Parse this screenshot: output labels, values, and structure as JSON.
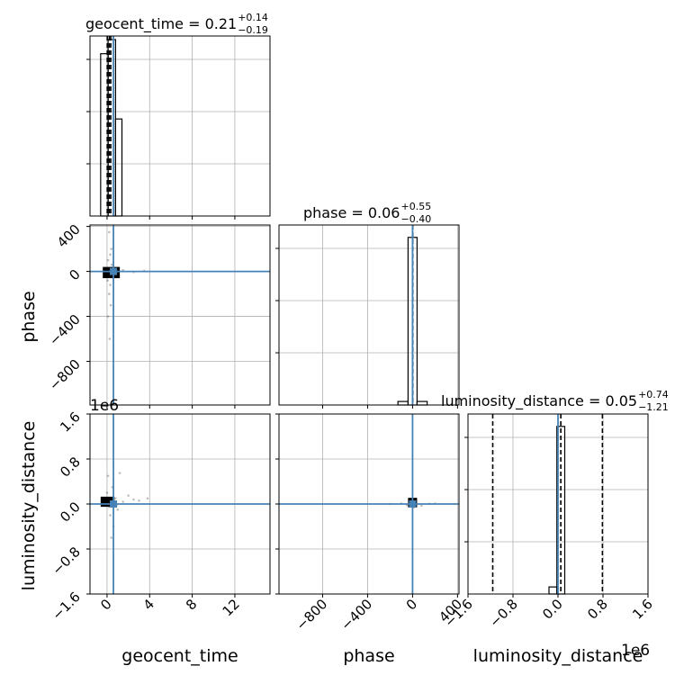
{
  "chart_data": {
    "type": "corner",
    "parameters": [
      "geocent_time",
      "phase",
      "luminosity_distance"
    ],
    "colors": {
      "truth": "#4682b4",
      "hist": "#000000",
      "grid": "#b0b0b0",
      "samples": "#000000"
    },
    "grid": true,
    "truths": {
      "geocent_time": 0.6,
      "phase": 0,
      "luminosity_distance": 0
    },
    "titles": {
      "geocent_time": {
        "prefix": "geocent_time = 0.21",
        "sup": "+0.14",
        "sub": "−0.19"
      },
      "phase": {
        "prefix": "phase = 0.06",
        "sup": "+0.55",
        "sub": "−0.40"
      },
      "luminosity_distance": {
        "prefix": "luminosity_distance = 0.05",
        "sup": "+0.74",
        "sub": "−1.21"
      }
    },
    "axis_labels": {
      "x": [
        "geocent_time",
        "phase",
        "luminosity_distance"
      ],
      "y": [
        "phase",
        "luminosity_distance"
      ]
    },
    "offset_text": {
      "luminosity_distance_y": "1e6",
      "luminosity_distance_x": "1e6"
    },
    "ranges": {
      "geocent_time": [
        -1.6,
        15.3
      ],
      "phase": [
        -1188,
        413
      ],
      "luminosity_distance": [
        -1600000,
        1600000
      ]
    },
    "ticks": {
      "geocent_time": {
        "values": [
          0,
          4,
          8,
          12
        ],
        "labels": [
          "0",
          "4",
          "8",
          "12"
        ]
      },
      "phase": {
        "values": [
          -800,
          -400,
          0,
          400
        ],
        "labels": [
          "−800",
          "−400",
          "0",
          "400"
        ]
      },
      "luminosity_distance": {
        "values": [
          -1600000,
          -800000,
          0,
          800000,
          1600000
        ],
        "labels": [
          "−1.6",
          "−0.8",
          "0.0",
          "0.8",
          "1.6"
        ]
      }
    },
    "histograms": {
      "geocent_time": {
        "bins": [
          [
            -0.6,
            0.1
          ],
          [
            0.1,
            0.8
          ],
          [
            0.8,
            1.4
          ]
        ],
        "heights": [
          0.92,
          1.0,
          0.55
        ],
        "quantile_lines": [
          0.02,
          0.21,
          0.35
        ]
      },
      "phase": {
        "bins": [
          [
            -130,
            -40
          ],
          [
            -40,
            40
          ],
          [
            40,
            130
          ]
        ],
        "heights": [
          0.02,
          0.95,
          0.02
        ],
        "quantile_lines": [
          -0.34,
          0.06,
          0.61
        ]
      },
      "luminosity_distance": {
        "bins": [
          [
            -160000,
            -20000
          ],
          [
            -20000,
            120000
          ]
        ],
        "heights": [
          0.04,
          0.95
        ],
        "quantile_lines": [
          -1160000,
          50000,
          790000
        ]
      }
    },
    "scatter": {
      "phase_vs_geocent_time": {
        "points": [
          [
            0.2,
            350
          ],
          [
            0.4,
            200
          ],
          [
            0.1,
            100
          ],
          [
            0.5,
            -50
          ],
          [
            0.3,
            -120
          ],
          [
            0.2,
            -200
          ],
          [
            0.35,
            -300
          ],
          [
            0.1,
            -400
          ],
          [
            0.25,
            -600
          ],
          [
            0.4,
            30
          ],
          [
            0.15,
            -30
          ],
          [
            0.45,
            60
          ],
          [
            1.5,
            10
          ],
          [
            2.5,
            -5
          ],
          [
            3.5,
            5
          ],
          [
            0.6,
            0
          ],
          [
            1.0,
            0
          ],
          [
            -0.2,
            20
          ],
          [
            0.05,
            -80
          ],
          [
            0.3,
            150
          ]
        ],
        "core": {
          "x": [
            -0.4,
            1.2
          ],
          "y": [
            -60,
            40
          ]
        }
      },
      "luminosity_distance_vs_geocent_time": {
        "points": [
          [
            0.1,
            500000
          ],
          [
            1.2,
            550000
          ],
          [
            0.5,
            300000
          ],
          [
            0.3,
            -200000
          ],
          [
            0.6,
            -400000
          ],
          [
            0.4,
            -600000
          ],
          [
            2.0,
            150000
          ],
          [
            2.5,
            80000
          ],
          [
            3.0,
            60000
          ],
          [
            1.0,
            -100000
          ],
          [
            0.8,
            100000
          ],
          [
            0.2,
            -50000
          ],
          [
            1.5,
            40000
          ],
          [
            3.8,
            100000
          ],
          [
            0.0,
            200000
          ],
          [
            0.9,
            -20000
          ]
        ],
        "core": {
          "x": [
            -0.6,
            0.7
          ],
          "y": [
            -50000,
            130000
          ]
        }
      },
      "luminosity_distance_vs_phase": {
        "points": [
          [
            -100,
            10000
          ],
          [
            -50,
            -20000
          ],
          [
            30,
            40000
          ],
          [
            80,
            -30000
          ],
          [
            150,
            5000
          ],
          [
            -200,
            0
          ],
          [
            200,
            10000
          ],
          [
            -20,
            80000
          ],
          [
            10,
            -60000
          ]
        ],
        "core": {
          "x": [
            -40,
            40
          ],
          "y": [
            -60000,
            110000
          ]
        }
      }
    }
  }
}
